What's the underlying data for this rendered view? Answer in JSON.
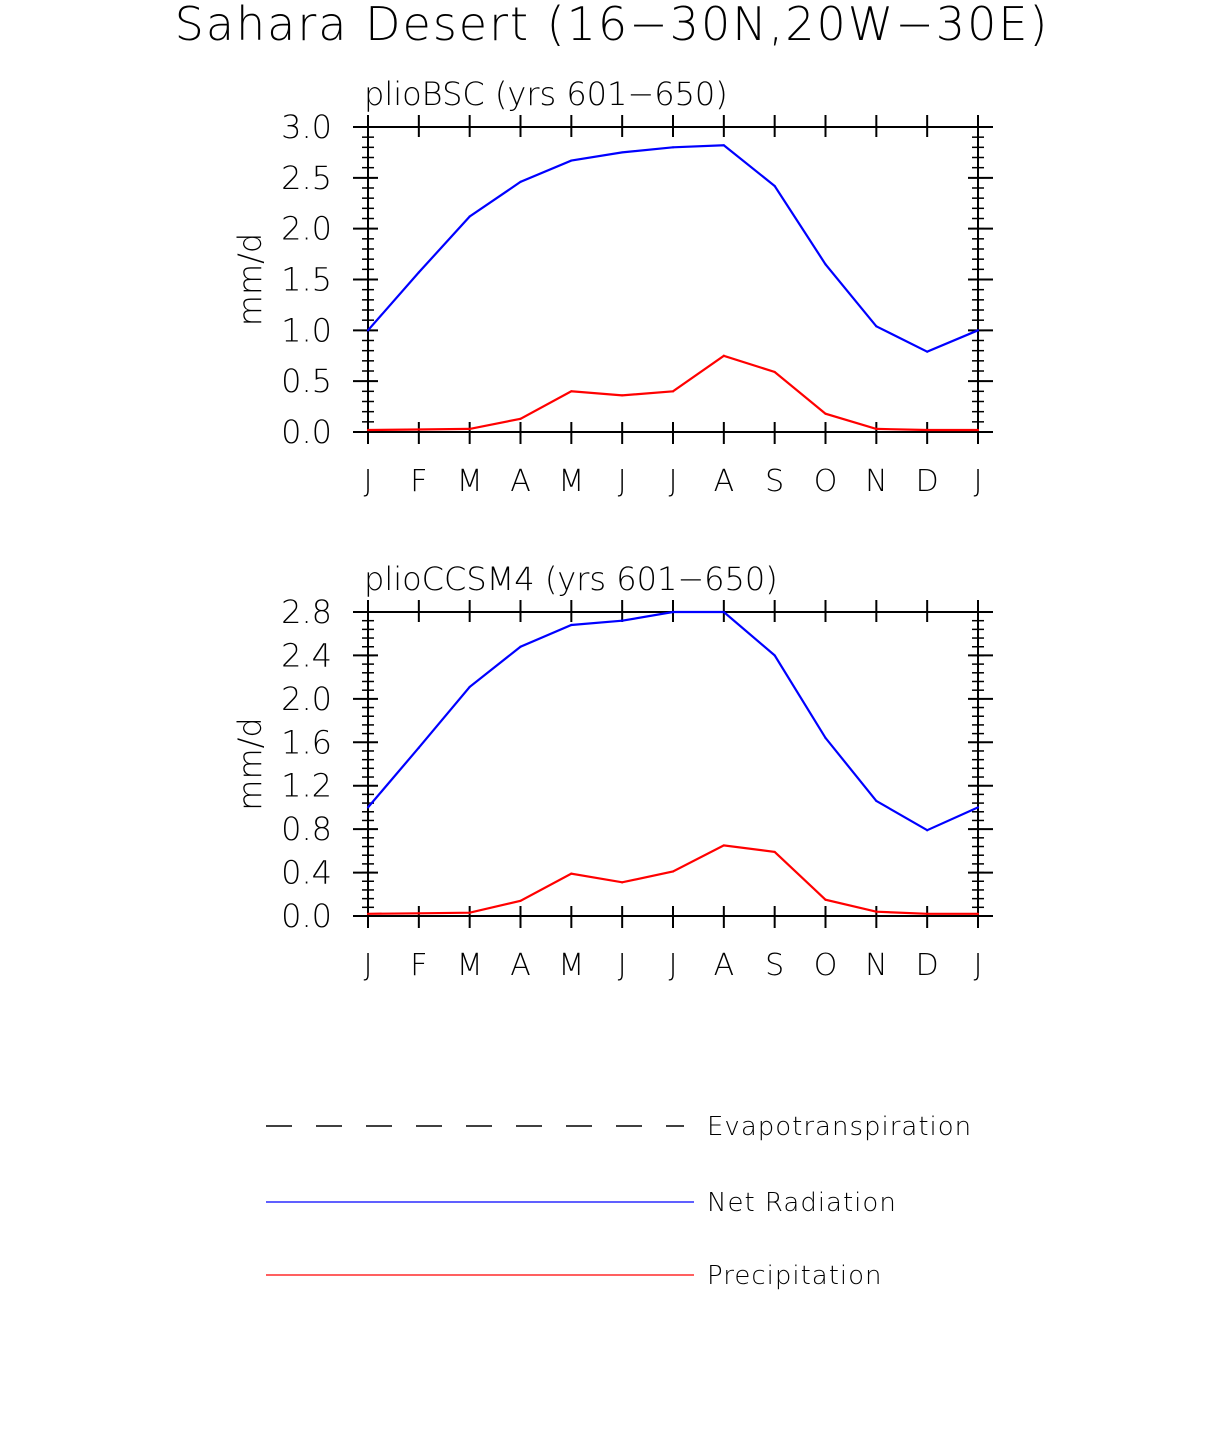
{
  "page_title": "Sahara Desert (16−30N,20W−30E)",
  "chart_data": [
    {
      "type": "line",
      "title": "plioBSC (yrs 601−650)",
      "xlabel": "",
      "ylabel": "mm/d",
      "ylim": [
        0,
        3.0
      ],
      "yticks": [
        0,
        0.5,
        1.0,
        1.5,
        2.0,
        2.5,
        3.0
      ],
      "ytick_labels": [
        "0.0",
        "0.5",
        "1.0",
        "1.5",
        "2.0",
        "2.5",
        "3.0"
      ],
      "categories": [
        "J",
        "F",
        "M",
        "A",
        "M",
        "J",
        "J",
        "A",
        "S",
        "O",
        "N",
        "D",
        "J"
      ],
      "series": [
        {
          "name": "Net Radiation",
          "color": "#0000ff",
          "values": [
            1.0,
            1.57,
            2.12,
            2.46,
            2.67,
            2.75,
            2.8,
            2.82,
            2.42,
            1.65,
            1.04,
            0.79,
            1.0
          ]
        },
        {
          "name": "Precipitation",
          "color": "#ff0000",
          "values": [
            0.02,
            0.025,
            0.03,
            0.13,
            0.4,
            0.36,
            0.4,
            0.75,
            0.59,
            0.18,
            0.03,
            0.02,
            0.02
          ]
        }
      ]
    },
    {
      "type": "line",
      "title": "plioCCSM4 (yrs 601−650)",
      "xlabel": "",
      "ylabel": "mm/d",
      "ylim": [
        0,
        2.8
      ],
      "yticks": [
        0,
        0.4,
        0.8,
        1.2,
        1.6,
        2.0,
        2.4,
        2.8
      ],
      "ytick_labels": [
        "0.0",
        "0.4",
        "0.8",
        "1.2",
        "1.6",
        "2.0",
        "2.4",
        "2.8"
      ],
      "categories": [
        "J",
        "F",
        "M",
        "A",
        "M",
        "J",
        "J",
        "A",
        "S",
        "O",
        "N",
        "D",
        "J"
      ],
      "series": [
        {
          "name": "Net Radiation",
          "color": "#0000ff",
          "values": [
            1.0,
            1.55,
            2.11,
            2.48,
            2.68,
            2.72,
            2.8,
            2.8,
            2.4,
            1.64,
            1.06,
            0.79,
            1.0
          ]
        },
        {
          "name": "Precipitation",
          "color": "#ff0000",
          "values": [
            0.02,
            0.025,
            0.03,
            0.14,
            0.39,
            0.31,
            0.41,
            0.65,
            0.59,
            0.15,
            0.04,
            0.02,
            0.02
          ]
        }
      ]
    }
  ],
  "legend": {
    "items": [
      {
        "label": "Evapotranspiration",
        "color": "#000000",
        "style": "dashed"
      },
      {
        "label": "Net Radiation",
        "color": "#0000ff",
        "style": "solid"
      },
      {
        "label": "Precipitation",
        "color": "#ff0000",
        "style": "solid"
      }
    ]
  }
}
